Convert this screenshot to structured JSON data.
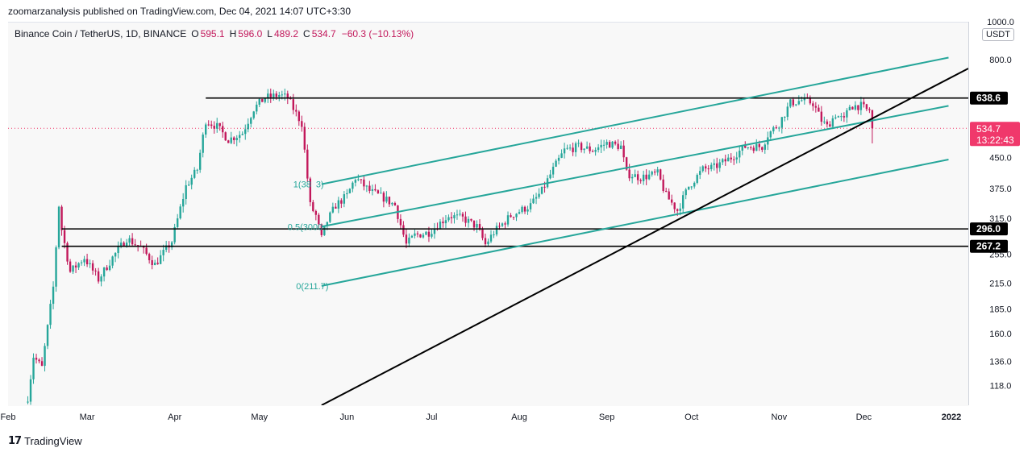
{
  "publisher_line": "zoomarzanalysis published on TradingView.com, Dec 04, 2021 14:07 UTC+3:30",
  "legend": {
    "symbol": "Binance Coin / TetherUS, 1D, BINANCE",
    "open_label": "O",
    "open": "595.1",
    "high_label": "H",
    "high": "596.0",
    "low_label": "L",
    "low": "489.2",
    "close_label": "C",
    "close": "534.7",
    "change": "−60.3 (−10.13%)"
  },
  "currency_badge": "USDT",
  "footer": {
    "logo": "17",
    "brand": "TradingView"
  },
  "chart_data": {
    "type": "candlestick",
    "scale": "log",
    "ylim": [
      105,
      1000
    ],
    "x_range": [
      "2021-02-01",
      "2022-01-07"
    ],
    "yticks": [
      {
        "v": 1000,
        "label": "1000.0"
      },
      {
        "v": 800,
        "label": "800.0"
      },
      {
        "v": 450,
        "label": "450.0"
      },
      {
        "v": 375,
        "label": "375.0"
      },
      {
        "v": 315,
        "label": "315.0"
      },
      {
        "v": 255,
        "label": "255.0"
      },
      {
        "v": 215,
        "label": "215.0"
      },
      {
        "v": 185,
        "label": "185.0"
      },
      {
        "v": 160,
        "label": "160.0"
      },
      {
        "v": 136,
        "label": "136.0"
      },
      {
        "v": 118,
        "label": "118.0"
      }
    ],
    "xticks": [
      {
        "d": "2021-02-01",
        "label": "Feb"
      },
      {
        "d": "2021-03-01",
        "label": "Mar"
      },
      {
        "d": "2021-04-01",
        "label": "Apr"
      },
      {
        "d": "2021-05-01",
        "label": "May"
      },
      {
        "d": "2021-06-01",
        "label": "Jun"
      },
      {
        "d": "2021-07-01",
        "label": "Jul"
      },
      {
        "d": "2021-08-01",
        "label": "Aug"
      },
      {
        "d": "2021-09-01",
        "label": "Sep"
      },
      {
        "d": "2021-10-01",
        "label": "Oct"
      },
      {
        "d": "2021-11-01",
        "label": "Nov"
      },
      {
        "d": "2021-12-01",
        "label": "Dec"
      },
      {
        "d": "2022-01-01",
        "label": "2022"
      }
    ],
    "price_tags": [
      {
        "v": 638.6,
        "label": "638.6",
        "color": "#000000"
      },
      {
        "v": 296.0,
        "label": "296.0",
        "color": "#000000"
      },
      {
        "v": 267.2,
        "label": "267.2",
        "color": "#000000"
      }
    ],
    "current_price": {
      "v": 534.7,
      "label": "534.7",
      "countdown": "13:22:43",
      "color": "#f0386b"
    },
    "colors": {
      "up": "#26a69a",
      "down": "#c2185b",
      "channel": "#26a69a",
      "level": "#000000"
    },
    "anchors": [
      {
        "d": "2021-02-08",
        "v": 110
      },
      {
        "d": "2021-02-10",
        "v": 140
      },
      {
        "d": "2021-02-13",
        "v": 131
      },
      {
        "d": "2021-02-17",
        "v": 210
      },
      {
        "d": "2021-02-19",
        "v": 340
      },
      {
        "d": "2021-02-20",
        "v": 295
      },
      {
        "d": "2021-02-23",
        "v": 230
      },
      {
        "d": "2021-02-28",
        "v": 250
      },
      {
        "d": "2021-03-05",
        "v": 220
      },
      {
        "d": "2021-03-10",
        "v": 250
      },
      {
        "d": "2021-03-15",
        "v": 280
      },
      {
        "d": "2021-03-20",
        "v": 265
      },
      {
        "d": "2021-03-25",
        "v": 240
      },
      {
        "d": "2021-03-31",
        "v": 275
      },
      {
        "d": "2021-04-05",
        "v": 380
      },
      {
        "d": "2021-04-09",
        "v": 420
      },
      {
        "d": "2021-04-12",
        "v": 560
      },
      {
        "d": "2021-04-16",
        "v": 540
      },
      {
        "d": "2021-04-20",
        "v": 500
      },
      {
        "d": "2021-04-25",
        "v": 520
      },
      {
        "d": "2021-04-29",
        "v": 600
      },
      {
        "d": "2021-05-03",
        "v": 640
      },
      {
        "d": "2021-05-08",
        "v": 650
      },
      {
        "d": "2021-05-11",
        "v": 640
      },
      {
        "d": "2021-05-13",
        "v": 600
      },
      {
        "d": "2021-05-16",
        "v": 550
      },
      {
        "d": "2021-05-19",
        "v": 340
      },
      {
        "d": "2021-05-21",
        "v": 320
      },
      {
        "d": "2021-05-23",
        "v": 280
      },
      {
        "d": "2021-05-25",
        "v": 310
      },
      {
        "d": "2021-05-28",
        "v": 340
      },
      {
        "d": "2021-06-01",
        "v": 360
      },
      {
        "d": "2021-06-04",
        "v": 400
      },
      {
        "d": "2021-06-09",
        "v": 370
      },
      {
        "d": "2021-06-14",
        "v": 355
      },
      {
        "d": "2021-06-18",
        "v": 340
      },
      {
        "d": "2021-06-22",
        "v": 270
      },
      {
        "d": "2021-06-25",
        "v": 285
      },
      {
        "d": "2021-06-30",
        "v": 290
      },
      {
        "d": "2021-07-07",
        "v": 320
      },
      {
        "d": "2021-07-12",
        "v": 315
      },
      {
        "d": "2021-07-17",
        "v": 300
      },
      {
        "d": "2021-07-20",
        "v": 270
      },
      {
        "d": "2021-07-23",
        "v": 290
      },
      {
        "d": "2021-07-29",
        "v": 320
      },
      {
        "d": "2021-08-05",
        "v": 340
      },
      {
        "d": "2021-08-09",
        "v": 370
      },
      {
        "d": "2021-08-13",
        "v": 420
      },
      {
        "d": "2021-08-17",
        "v": 470
      },
      {
        "d": "2021-08-22",
        "v": 480
      },
      {
        "d": "2021-08-27",
        "v": 470
      },
      {
        "d": "2021-09-01",
        "v": 490
      },
      {
        "d": "2021-09-06",
        "v": 480
      },
      {
        "d": "2021-09-08",
        "v": 410
      },
      {
        "d": "2021-09-13",
        "v": 400
      },
      {
        "d": "2021-09-19",
        "v": 410
      },
      {
        "d": "2021-09-22",
        "v": 360
      },
      {
        "d": "2021-09-26",
        "v": 330
      },
      {
        "d": "2021-09-30",
        "v": 380
      },
      {
        "d": "2021-10-05",
        "v": 420
      },
      {
        "d": "2021-10-09",
        "v": 425
      },
      {
        "d": "2021-10-15",
        "v": 450
      },
      {
        "d": "2021-10-20",
        "v": 480
      },
      {
        "d": "2021-10-26",
        "v": 480
      },
      {
        "d": "2021-10-28",
        "v": 515
      },
      {
        "d": "2021-11-01",
        "v": 550
      },
      {
        "d": "2021-11-05",
        "v": 620
      },
      {
        "d": "2021-11-09",
        "v": 630
      },
      {
        "d": "2021-11-13",
        "v": 620
      },
      {
        "d": "2021-11-16",
        "v": 560
      },
      {
        "d": "2021-11-18",
        "v": 540
      },
      {
        "d": "2021-11-21",
        "v": 580
      },
      {
        "d": "2021-11-24",
        "v": 560
      },
      {
        "d": "2021-11-26",
        "v": 610
      },
      {
        "d": "2021-11-30",
        "v": 610
      },
      {
        "d": "2021-12-02",
        "v": 595
      },
      {
        "d": "2021-12-03",
        "v": 595
      }
    ],
    "last_candle": {
      "d": "2021-12-04",
      "open": 595.1,
      "high": 596.0,
      "low": 489.2,
      "close": 534.7
    },
    "drawings": {
      "horizontal_levels": [
        {
          "v": 638.6,
          "from": "2021-04-12",
          "to": "2022-01-07"
        },
        {
          "v": 296.0,
          "from": "2021-02-20",
          "to": "2022-01-07"
        },
        {
          "v": 267.2,
          "from": "2021-02-20",
          "to": "2022-01-07"
        }
      ],
      "channel": [
        {
          "from": {
            "d": "2021-05-23",
            "v": 385
          },
          "to": {
            "d": "2021-12-31",
            "v": 810
          }
        },
        {
          "from": {
            "d": "2021-05-23",
            "v": 300
          },
          "to": {
            "d": "2021-12-31",
            "v": 610
          }
        },
        {
          "from": {
            "d": "2021-05-23",
            "v": 211.7
          },
          "to": {
            "d": "2021-12-31",
            "v": 445
          }
        }
      ],
      "trendline": {
        "from": {
          "d": "2021-05-23",
          "v": 105
        },
        "to": {
          "d": "2022-01-07",
          "v": 760
        }
      },
      "fib_labels": [
        {
          "text": "1(38",
          "d": "2021-05-13",
          "v": 385
        },
        {
          "text": "3)",
          "d": "2021-05-21",
          "v": 385
        },
        {
          "text": "0.5(3000",
          "d": "2021-05-11",
          "v": 300
        },
        {
          "text": "0(211.7)",
          "d": "2021-05-14",
          "v": 211.7
        }
      ]
    }
  }
}
